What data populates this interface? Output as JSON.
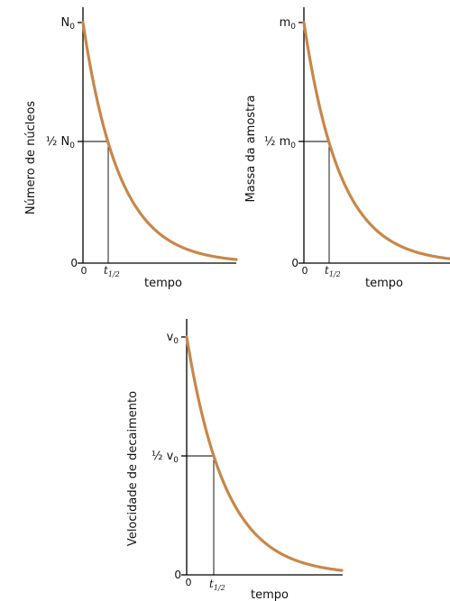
{
  "chart_data": [
    {
      "type": "line",
      "title": "",
      "ylabel": "Número de núcleos",
      "xlabel": "tempo",
      "origin_label": "0",
      "y_tick_top": {
        "base": "N",
        "sub": "0"
      },
      "y_tick_half": {
        "prefix": "½ ",
        "base": "N",
        "sub": "0"
      },
      "x_tick_half": {
        "base": "t",
        "sub": "1/2"
      },
      "curve": {
        "relation": "exponential-decay",
        "start_fraction": 1.0,
        "half_life_fraction": 0.5,
        "color": "#C8874A"
      }
    },
    {
      "type": "line",
      "title": "",
      "ylabel": "Massa da amostra",
      "xlabel": "tempo",
      "origin_label": "0",
      "y_tick_top": {
        "base": "m",
        "sub": "0"
      },
      "y_tick_half": {
        "prefix": "½ ",
        "base": "m",
        "sub": "0"
      },
      "x_tick_half": {
        "base": "t",
        "sub": "1/2"
      },
      "curve": {
        "relation": "exponential-decay",
        "start_fraction": 1.0,
        "half_life_fraction": 0.5,
        "color": "#C8874A"
      }
    },
    {
      "type": "line",
      "title": "",
      "ylabel": "Velocidade de decaimento",
      "xlabel": "tempo",
      "origin_label": "0",
      "y_tick_top": {
        "base": "v",
        "sub": "0"
      },
      "y_tick_half": {
        "prefix": "½ ",
        "base": "v",
        "sub": "0"
      },
      "x_tick_half": {
        "base": "t",
        "sub": "1/2"
      },
      "curve": {
        "relation": "exponential-decay",
        "start_fraction": 1.0,
        "half_life_fraction": 0.5,
        "color": "#C8874A"
      }
    }
  ]
}
